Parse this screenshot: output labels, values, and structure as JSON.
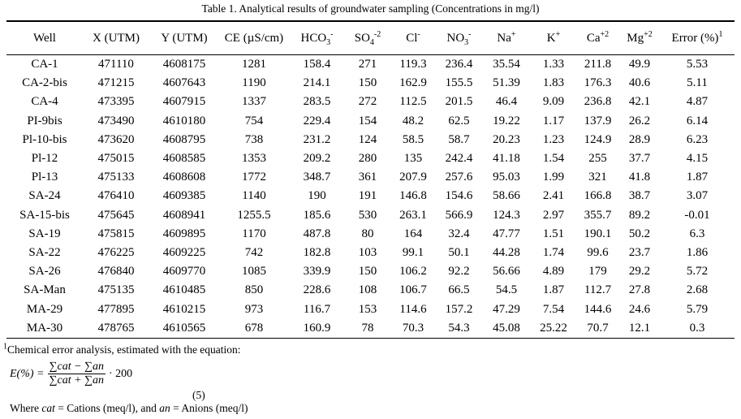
{
  "title": "Table 1. Analytical results of groundwater sampling (Concentrations in mg/l)",
  "table": {
    "headers": [
      {
        "text": "Well"
      },
      {
        "text": "X (UTM)"
      },
      {
        "text": "Y (UTM)"
      },
      {
        "text": "CE (µS/cm)"
      },
      {
        "text": "HCO",
        "sub": "3",
        "sup": "-"
      },
      {
        "text": "SO",
        "sub": "4",
        "sup": "-2"
      },
      {
        "text": "Cl",
        "sup": "-"
      },
      {
        "text": "NO",
        "sub": "3",
        "sup": "-"
      },
      {
        "text": "Na",
        "sup": "+"
      },
      {
        "text": "K",
        "sup": "+"
      },
      {
        "text": "Ca",
        "sup": "+2"
      },
      {
        "text": "Mg",
        "sup": "+2"
      },
      {
        "text": "Error (%)",
        "sup": "1"
      }
    ],
    "rows": [
      [
        "CA-1",
        471110,
        4608175,
        1281,
        158.4,
        271,
        119.3,
        236.4,
        35.54,
        1.33,
        211.8,
        49.9,
        5.53
      ],
      [
        "CA-2-bis",
        471215,
        4607643,
        1190,
        214.1,
        150,
        162.9,
        155.5,
        51.39,
        1.83,
        176.3,
        40.6,
        5.11
      ],
      [
        "CA-4",
        473395,
        4607915,
        1337,
        283.5,
        272,
        112.5,
        201.5,
        46.4,
        9.09,
        236.8,
        42.1,
        4.87
      ],
      [
        "PI-9bis",
        473490,
        4610180,
        754,
        229.4,
        154,
        48.2,
        62.5,
        19.22,
        1.17,
        137.9,
        26.2,
        6.14
      ],
      [
        "Pl-10-bis",
        473620,
        4608795,
        738,
        231.2,
        124,
        58.5,
        58.7,
        20.23,
        1.23,
        124.9,
        28.9,
        6.23
      ],
      [
        "Pl-12",
        475015,
        4608585,
        1353,
        209.2,
        280,
        135,
        242.4,
        41.18,
        1.54,
        255,
        37.7,
        4.15
      ],
      [
        "Pl-13",
        475133,
        4608608,
        1772,
        348.7,
        361,
        207.9,
        257.6,
        95.03,
        1.99,
        321,
        41.8,
        1.87
      ],
      [
        "SA-24",
        476410,
        4609385,
        1140,
        190,
        191,
        146.8,
        154.6,
        58.66,
        2.41,
        166.8,
        38.7,
        3.07
      ],
      [
        "SA-15-bis",
        475645,
        4608941,
        1255.5,
        185.6,
        530,
        263.1,
        566.9,
        124.3,
        2.97,
        355.7,
        89.2,
        -0.01
      ],
      [
        "SA-19",
        475815,
        4609895,
        1170,
        487.8,
        80,
        164,
        32.4,
        47.77,
        1.51,
        190.1,
        50.2,
        6.3
      ],
      [
        "SA-22",
        476225,
        4609225,
        742,
        182.8,
        103,
        99.1,
        50.1,
        44.28,
        1.74,
        99.6,
        23.7,
        1.86
      ],
      [
        "SA-26",
        476840,
        4609770,
        1085,
        339.9,
        150,
        106.2,
        92.2,
        56.66,
        4.89,
        179,
        29.2,
        5.72
      ],
      [
        "SA-Man",
        475135,
        4610485,
        850,
        228.6,
        108,
        106.7,
        66.5,
        54.5,
        1.87,
        112.7,
        27.8,
        2.68
      ],
      [
        "MA-29",
        477895,
        4610215,
        973,
        116.7,
        153,
        114.6,
        157.2,
        47.29,
        7.54,
        144.6,
        24.6,
        5.79
      ],
      [
        "MA-30",
        478765,
        4610565,
        678,
        160.9,
        78,
        70.3,
        54.3,
        45.08,
        25.22,
        70.7,
        12.1,
        0.3
      ]
    ]
  },
  "footnote": {
    "mark": "1",
    "text": "Chemical error analysis, estimated with the equation:"
  },
  "equation": {
    "lhs": "E(%) =",
    "numerator": "∑cat − ∑an",
    "denominator": "∑cat + ∑an",
    "factor": "· 200",
    "number": "(5)"
  },
  "where": [
    "Where ",
    "cat",
    " = Cations (meq/l), and ",
    "an",
    " = Anions (meq/l)"
  ]
}
